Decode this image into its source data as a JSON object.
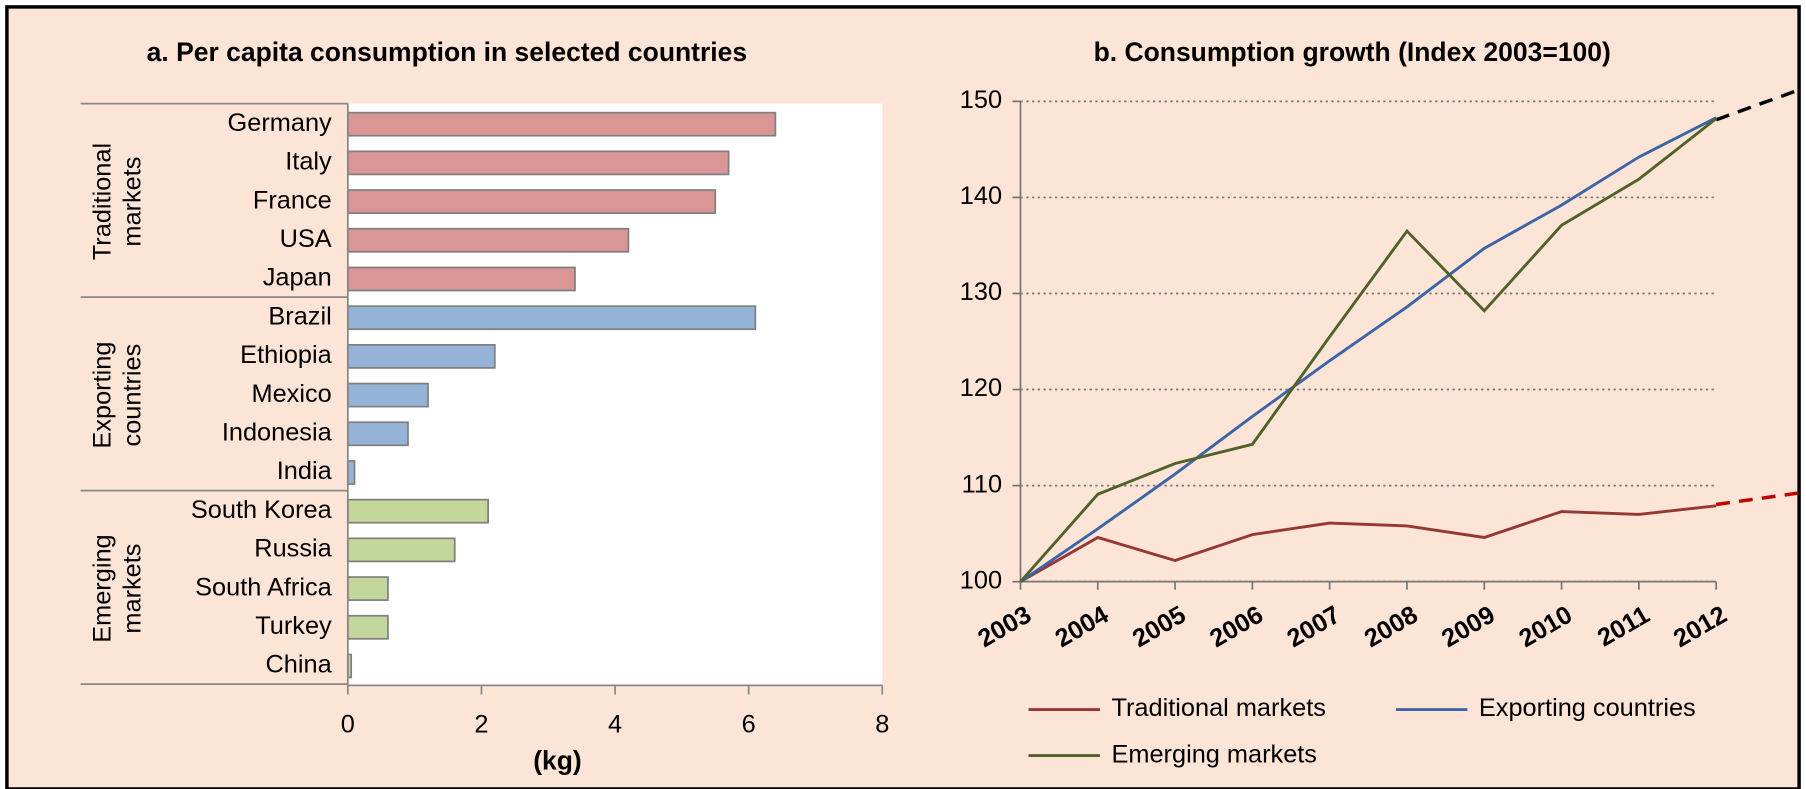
{
  "chart_data": [
    {
      "type": "bar",
      "orientation": "horizontal",
      "title": "a. Per capita consumption  in selected countries",
      "xlabel": "(kg)",
      "xlim": [
        0,
        8
      ],
      "xticks": [
        0,
        2,
        4,
        6,
        8
      ],
      "series": [
        {
          "name": "Traditional markets",
          "color": "#d99694",
          "categories": [
            "Germany",
            "Italy",
            "France",
            "USA",
            "Japan"
          ],
          "values": [
            6.4,
            5.7,
            5.5,
            4.2,
            3.4
          ]
        },
        {
          "name": "Exporting countries",
          "color": "#95b3d7",
          "categories": [
            "Brazil",
            "Ethiopia",
            "Mexico",
            "Indonesia",
            "India"
          ],
          "values": [
            6.1,
            2.2,
            1.2,
            0.9,
            0.1
          ]
        },
        {
          "name": "Emerging markets",
          "color": "#c3d69b",
          "categories": [
            "South Korea",
            "Russia",
            "South Africa",
            "Turkey",
            "China"
          ],
          "values": [
            2.1,
            1.6,
            0.6,
            0.6,
            0.05
          ]
        }
      ]
    },
    {
      "type": "line",
      "title": "b. Consumption  growth (Index 2003=100)",
      "categories": [
        "2003",
        "2004",
        "2005",
        "2006",
        "2007",
        "2008",
        "2009",
        "2010",
        "2011",
        "2012"
      ],
      "ylim": [
        100,
        150
      ],
      "yticks": [
        100,
        110,
        120,
        130,
        140,
        150
      ],
      "grid": true,
      "series": [
        {
          "name": "Traditional markets",
          "color": "#953735",
          "values": [
            100,
            104.6,
            102.2,
            104.9,
            106.1,
            105.8,
            104.6,
            107.3,
            107.0,
            107.9
          ]
        },
        {
          "name": "Exporting countries",
          "color": "#3c64a6",
          "values": [
            100,
            105.5,
            111.2,
            117.2,
            123.0,
            128.6,
            134.7,
            139.2,
            144.2,
            148.3
          ]
        },
        {
          "name": "Emerging markets",
          "color": "#4f6228",
          "values": [
            100,
            109.1,
            112.3,
            114.3,
            125.5,
            136.5,
            128.2,
            137.1,
            141.9,
            148.2
          ]
        }
      ]
    }
  ]
}
